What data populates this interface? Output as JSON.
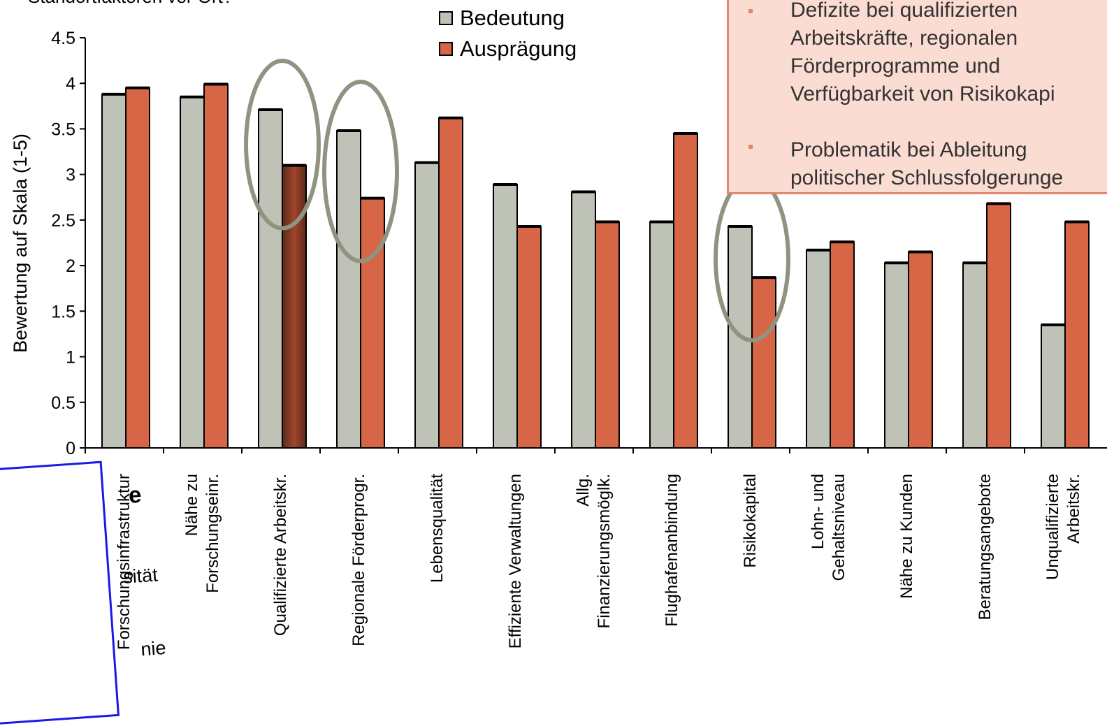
{
  "subtitle": "Standortfaktoren vor Ort?",
  "legend": [
    {
      "name": "Bedeutung",
      "color": "#bfc2b6"
    },
    {
      "name": "Ausprägung",
      "color": "#d76646"
    }
  ],
  "note_box": {
    "items": [
      "Defizite bei qualifizierten\nArbeitskräfte, regionalen\nFörderprogramme und\nVerfügbarkeit von Risikokapi",
      "Problematik bei Ableitung\npolitischer Schlussfolgerunge"
    ],
    "bg_color": "#fbdcd3",
    "border_color": "#e0876c"
  },
  "side_box": {
    "lines": [
      "e",
      "sität",
      "nie"
    ],
    "border_color": "#1a1ae6"
  },
  "highlight_circle_color": "#8f9480",
  "highlighted_categories": [
    "Qualifizierte Arbeitskr.",
    "Regionale Förderprogr.",
    "Risikokapital"
  ],
  "chart_data": {
    "type": "bar",
    "title": "",
    "xlabel": "",
    "ylabel": "Bewertung auf Skala (1-5)",
    "ylim": [
      0,
      4.5
    ],
    "yticks": [
      "0",
      "0.5",
      "1",
      "1.5",
      "2",
      "2.5",
      "3",
      "3.5",
      "4",
      "4.5"
    ],
    "grid": false,
    "legend_position": "top-center",
    "categories": [
      "Forschungsinfrastruktur",
      "Nähe zu\nForschungseinr.",
      "Qualifizierte Arbeitskr.",
      "Regionale Förderprogr.",
      "Lebensqualität",
      "Effiziente Verwaltungen",
      "Allg.\nFinanzierungsmöglk.",
      "Flughafenanbindung",
      "Risikokapital",
      "Lohn- und\nGehaltsniveau",
      "Nähe zu Kunden",
      "Beratungsangebote",
      "Unqualifizierte\nArbeitskr."
    ],
    "series": [
      {
        "name": "Bedeutung",
        "color": "#bfc2b6",
        "values": [
          3.88,
          3.85,
          3.71,
          3.48,
          3.13,
          2.89,
          2.81,
          2.48,
          2.43,
          2.17,
          2.03,
          2.03,
          1.35
        ]
      },
      {
        "name": "Ausprägung",
        "color": "#d76646",
        "values": [
          3.95,
          3.99,
          3.1,
          2.74,
          3.62,
          2.43,
          2.48,
          3.45,
          1.87,
          2.26,
          2.15,
          2.68,
          2.48
        ]
      }
    ]
  }
}
